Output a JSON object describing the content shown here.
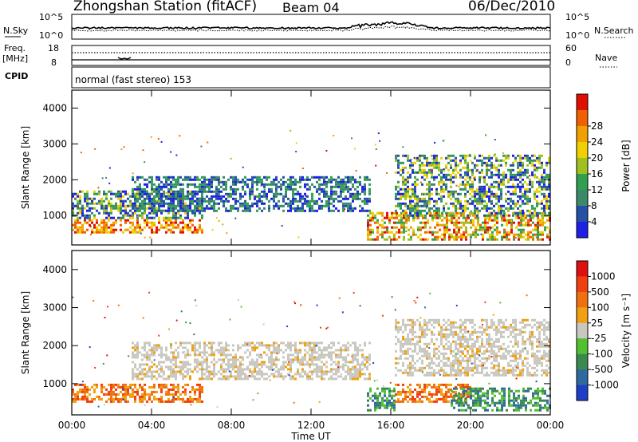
{
  "header": {
    "station": "Zhongshan Station (fitACF)",
    "beam": "Beam 04",
    "date": "06/Dec/2010"
  },
  "noise_panel": {
    "left_label": "N.Sky",
    "right_label": "N.Search",
    "left_ticks": [
      "10^5",
      "10^0"
    ],
    "right_ticks": [
      "10^5",
      "10^0"
    ]
  },
  "freq_panel": {
    "left_label_top": "Freq.",
    "left_label_bottom": "[MHz]",
    "right_label": "Nave",
    "left_ticks": [
      "18",
      "8"
    ],
    "right_ticks": [
      "60",
      "0"
    ]
  },
  "cpid": {
    "label": "CPID",
    "text": "normal (fast stereo) 153"
  },
  "chart_data": [
    {
      "type": "heatmap",
      "title": "",
      "quantity": "Power",
      "ylabel": "Slant Range [km]",
      "xlabel": "Time UT",
      "xlim": [
        "00:00",
        "24:00"
      ],
      "ylim": [
        180,
        4500
      ],
      "x_ticks": [
        "00:00",
        "04:00",
        "08:00",
        "12:00",
        "16:00",
        "20:00",
        "00:00"
      ],
      "y_ticks": [
        1000,
        2000,
        3000,
        4000
      ],
      "colorbar": {
        "label": "Power [dB]",
        "ticks": [
          "4",
          "8",
          "12",
          "16",
          "20",
          "24",
          "28"
        ],
        "colors": [
          "#1f1fe6",
          "#2450a8",
          "#3a8a6a",
          "#30a050",
          "#a0c020",
          "#f0d000",
          "#f0a000",
          "#f06000",
          "#e01000"
        ]
      },
      "features": [
        {
          "t_start": 0.0,
          "t_end": 6.6,
          "range_min": 500,
          "range_max": 900,
          "level": "high (20-28 dB)"
        },
        {
          "t_start": 0.0,
          "t_end": 6.6,
          "range_min": 900,
          "range_max": 1700,
          "level": "low-mid (4-16 dB)"
        },
        {
          "t_start": 3.0,
          "t_end": 15.0,
          "range_min": 1100,
          "range_max": 2100,
          "level": "low (4-12 dB)"
        },
        {
          "t_start": 14.8,
          "t_end": 24.0,
          "range_min": 300,
          "range_max": 1100,
          "level": "mid-high (12-28 dB)"
        },
        {
          "t_start": 16.2,
          "t_end": 24.0,
          "range_min": 1000,
          "range_max": 2700,
          "level": "low-mid (4-20 dB)"
        }
      ]
    },
    {
      "type": "heatmap",
      "title": "",
      "quantity": "Velocity",
      "ylabel": "Slant Range [km]",
      "xlabel": "Time UT",
      "xlim": [
        "00:00",
        "24:00"
      ],
      "ylim": [
        180,
        4500
      ],
      "x_ticks": [
        "00:00",
        "04:00",
        "08:00",
        "12:00",
        "16:00",
        "20:00",
        "00:00"
      ],
      "y_ticks": [
        1000,
        2000,
        3000,
        4000
      ],
      "colorbar": {
        "label": "Velocity [m s⁻¹]",
        "ticks": [
          "1000",
          "500",
          "100",
          "25",
          "-25",
          "-100",
          "-500",
          "-1000"
        ],
        "colors": [
          "#1e3ec8",
          "#2e6aa0",
          "#3a8a50",
          "#52c030",
          "#c8c8c0",
          "#f0a010",
          "#f07010",
          "#f04010",
          "#e01010"
        ]
      },
      "features": [
        {
          "t_start": 0.0,
          "t_end": 6.6,
          "range_min": 500,
          "range_max": 1000,
          "level": "-100 to -500 m/s"
        },
        {
          "t_start": 3.0,
          "t_end": 15.0,
          "range_min": 1100,
          "range_max": 2100,
          "level": "-25 to 25 m/s"
        },
        {
          "t_start": 14.8,
          "t_end": 16.2,
          "range_min": 300,
          "range_max": 900,
          "level": "100 to 500 m/s"
        },
        {
          "t_start": 16.2,
          "t_end": 20.0,
          "range_min": 500,
          "range_max": 1000,
          "level": "-100 to -500 m/s"
        },
        {
          "t_start": 19.0,
          "t_end": 24.0,
          "range_min": 300,
          "range_max": 900,
          "level": "100 to 500 m/s"
        },
        {
          "t_start": 16.2,
          "t_end": 24.0,
          "range_min": 1200,
          "range_max": 2700,
          "level": "-25 to 25 m/s"
        }
      ]
    }
  ]
}
